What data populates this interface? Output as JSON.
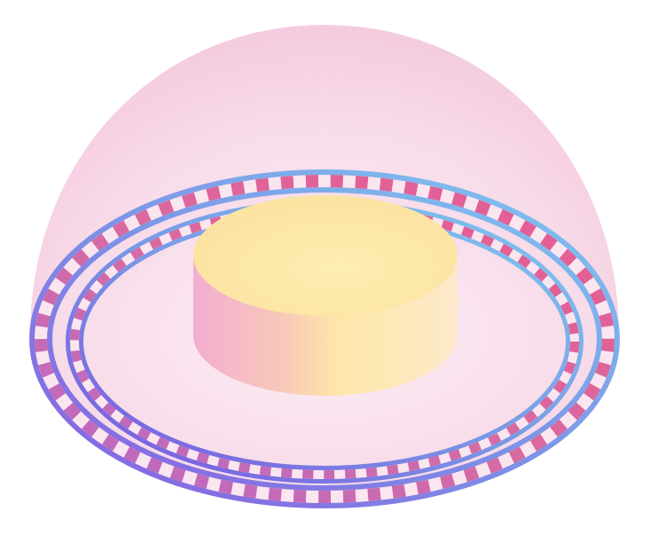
{
  "illustration": {
    "subject": "isometric-dome-with-dashed-rings-and-cylinder",
    "dome": {
      "fill": "#f6d2e3",
      "highlight": "#fbeaf2"
    },
    "outer_ring": {
      "gradient": [
        "#8a5ee0",
        "#7ec8f0"
      ],
      "dash_colors": [
        "#e0508a",
        "#b06ac0",
        "#f8e0ee"
      ]
    },
    "inner_ring": {
      "gradient": [
        "#7a55e0",
        "#7ec8f0"
      ],
      "dash_colors": [
        "#e0508a",
        "#b06ac0",
        "#f8e0ee"
      ]
    },
    "cylinder": {
      "top": "#fce9a6",
      "side_left": "#f3b3cf",
      "side_right": "#fde9c4"
    }
  }
}
